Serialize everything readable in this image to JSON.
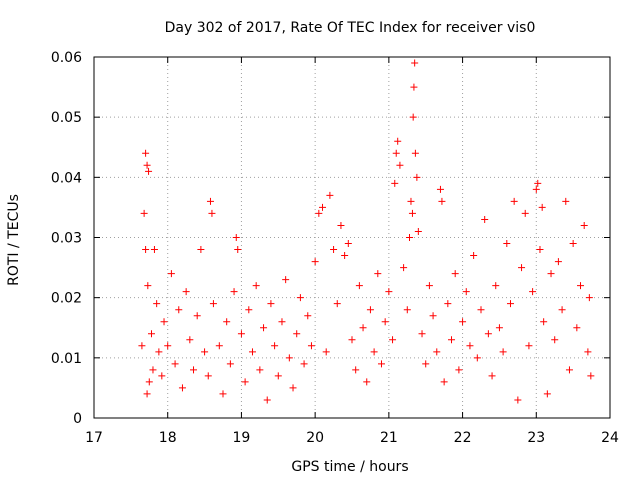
{
  "chart_data": {
    "type": "scatter",
    "title": "Day 302 of 2017, Rate Of TEC Index for receiver vis0",
    "xlabel": "GPS time / hours",
    "ylabel": "ROTI / TECUs",
    "xlim": [
      17,
      24
    ],
    "ylim": [
      0,
      0.06
    ],
    "x_ticks": [
      17,
      18,
      19,
      20,
      21,
      22,
      23,
      24
    ],
    "x_tick_labels": [
      "17",
      "18",
      "19",
      "20",
      "21",
      "22",
      "23",
      "24"
    ],
    "y_ticks": [
      0,
      0.01,
      0.02,
      0.03,
      0.04,
      0.05,
      0.06
    ],
    "y_tick_labels": [
      "0",
      "0.01",
      "0.02",
      "0.03",
      "0.04",
      "0.05",
      "0.06"
    ],
    "grid": true,
    "marker": "+",
    "marker_color": "#ff0000",
    "series": [
      {
        "name": "ROTI",
        "x": [
          17.65,
          17.68,
          17.7,
          17.72,
          17.74,
          17.75,
          17.72,
          17.7,
          17.73,
          17.78,
          17.8,
          17.82,
          17.85,
          17.88,
          17.92,
          17.95,
          18.0,
          18.05,
          18.1,
          18.15,
          18.2,
          18.25,
          18.3,
          18.35,
          18.4,
          18.45,
          18.5,
          18.55,
          18.58,
          18.6,
          18.62,
          18.7,
          18.75,
          18.8,
          18.85,
          18.9,
          18.93,
          18.95,
          19.0,
          19.05,
          19.1,
          19.15,
          19.2,
          19.25,
          19.3,
          19.35,
          19.4,
          19.45,
          19.5,
          19.55,
          19.6,
          19.65,
          19.7,
          19.75,
          19.8,
          19.85,
          19.9,
          19.95,
          20.0,
          20.05,
          20.1,
          20.15,
          20.2,
          20.25,
          20.3,
          20.35,
          20.4,
          20.45,
          20.5,
          20.55,
          20.6,
          20.65,
          20.7,
          20.75,
          20.8,
          20.85,
          20.9,
          20.95,
          21.0,
          21.05,
          21.08,
          21.1,
          21.12,
          21.15,
          21.2,
          21.25,
          21.28,
          21.3,
          21.32,
          21.33,
          21.34,
          21.35,
          21.36,
          21.38,
          21.4,
          21.45,
          21.5,
          21.55,
          21.6,
          21.65,
          21.7,
          21.72,
          21.75,
          21.8,
          21.85,
          21.9,
          21.95,
          22.0,
          22.05,
          22.1,
          22.15,
          22.2,
          22.25,
          22.3,
          22.35,
          22.4,
          22.45,
          22.5,
          22.55,
          22.6,
          22.65,
          22.7,
          22.75,
          22.8,
          22.85,
          22.9,
          22.95,
          23.0,
          23.02,
          23.05,
          23.08,
          23.1,
          23.15,
          23.2,
          23.25,
          23.3,
          23.35,
          23.4,
          23.45,
          23.5,
          23.55,
          23.6,
          23.65,
          23.7,
          23.72,
          23.74
        ],
        "y": [
          0.012,
          0.034,
          0.044,
          0.042,
          0.041,
          0.006,
          0.004,
          0.028,
          0.022,
          0.014,
          0.008,
          0.028,
          0.019,
          0.011,
          0.007,
          0.016,
          0.012,
          0.024,
          0.009,
          0.018,
          0.005,
          0.021,
          0.013,
          0.008,
          0.017,
          0.028,
          0.011,
          0.007,
          0.036,
          0.034,
          0.019,
          0.012,
          0.004,
          0.016,
          0.009,
          0.021,
          0.03,
          0.028,
          0.014,
          0.006,
          0.018,
          0.011,
          0.022,
          0.008,
          0.015,
          0.003,
          0.019,
          0.012,
          0.007,
          0.016,
          0.023,
          0.01,
          0.005,
          0.014,
          0.02,
          0.009,
          0.017,
          0.012,
          0.026,
          0.034,
          0.035,
          0.011,
          0.037,
          0.028,
          0.019,
          0.032,
          0.027,
          0.029,
          0.013,
          0.008,
          0.022,
          0.015,
          0.006,
          0.018,
          0.011,
          0.024,
          0.009,
          0.016,
          0.021,
          0.013,
          0.039,
          0.044,
          0.046,
          0.042,
          0.025,
          0.018,
          0.03,
          0.036,
          0.034,
          0.05,
          0.055,
          0.059,
          0.044,
          0.04,
          0.031,
          0.014,
          0.009,
          0.022,
          0.017,
          0.011,
          0.038,
          0.036,
          0.006,
          0.019,
          0.013,
          0.024,
          0.008,
          0.016,
          0.021,
          0.012,
          0.027,
          0.01,
          0.018,
          0.033,
          0.014,
          0.007,
          0.022,
          0.015,
          0.011,
          0.029,
          0.019,
          0.036,
          0.003,
          0.025,
          0.034,
          0.012,
          0.021,
          0.038,
          0.039,
          0.028,
          0.035,
          0.016,
          0.004,
          0.024,
          0.013,
          0.026,
          0.018,
          0.036,
          0.008,
          0.029,
          0.015,
          0.022,
          0.032,
          0.011,
          0.02,
          0.007
        ]
      }
    ]
  }
}
